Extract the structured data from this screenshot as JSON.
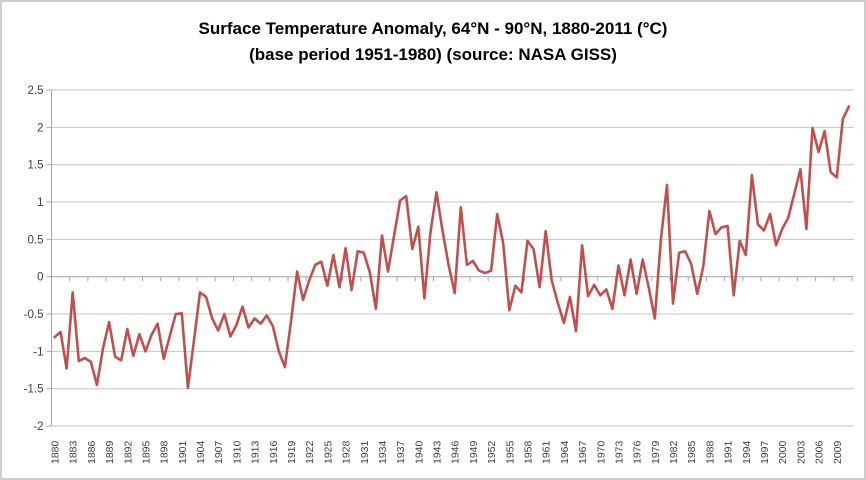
{
  "title": {
    "line1": "Surface Temperature Anomaly, 64°N - 90°N, 1880-2011 (°C)",
    "line2": "(base period 1951-1980) (source: NASA GISS)"
  },
  "colors": {
    "line": "#C0504D",
    "gridline": "#C6C6C6",
    "axis": "#A6A6A6",
    "label": "#3F3F3F",
    "title": "#000000",
    "border": "#CDCDCD",
    "background": "#FFFFFF"
  },
  "chart_data": {
    "type": "line",
    "title": "Surface Temperature Anomaly, 64°N - 90°N, 1880-2011 (°C)",
    "subtitle": "(base period 1951-1980) (source: NASA GISS)",
    "xlabel": "",
    "ylabel": "",
    "legend": "none",
    "grid": "horizontal",
    "first_year": 1880,
    "last_year": 2011,
    "ylim": [
      -2,
      2.5
    ],
    "y_ticks": [
      "2.5",
      "2",
      "1.5",
      "1",
      "0.5",
      "0",
      "-0.5",
      "-1",
      "-1.5",
      "-2"
    ],
    "y_tick_values": [
      2.5,
      2,
      1.5,
      1,
      0.5,
      0,
      -0.5,
      -1,
      -1.5,
      -2
    ],
    "x_tick_interval": 3,
    "x_tick_labels": [
      "1880",
      "1883",
      "1886",
      "1889",
      "1892",
      "1895",
      "1898",
      "1901",
      "1904",
      "1907",
      "1910",
      "1913",
      "1916",
      "1919",
      "1922",
      "1925",
      "1928",
      "1931",
      "1934",
      "1937",
      "1940",
      "1943",
      "1946",
      "1949",
      "1952",
      "1955",
      "1958",
      "1961",
      "1964",
      "1967",
      "1970",
      "1973",
      "1976",
      "1979",
      "1982",
      "1985",
      "1988",
      "1991",
      "1994",
      "1997",
      "2000",
      "2003",
      "2006",
      "2009"
    ],
    "values": [
      -0.81,
      -0.74,
      -1.23,
      -0.21,
      -1.13,
      -1.09,
      -1.14,
      -1.45,
      -0.96,
      -0.61,
      -1.07,
      -1.12,
      -0.7,
      -1.06,
      -0.77,
      -1.0,
      -0.78,
      -0.63,
      -1.1,
      -0.8,
      -0.5,
      -0.49,
      -1.49,
      -0.85,
      -0.21,
      -0.27,
      -0.56,
      -0.72,
      -0.5,
      -0.8,
      -0.65,
      -0.4,
      -0.68,
      -0.56,
      -0.63,
      -0.52,
      -0.66,
      -1.0,
      -1.21,
      -0.6,
      0.07,
      -0.31,
      -0.05,
      0.16,
      0.2,
      -0.12,
      0.29,
      -0.14,
      0.38,
      -0.18,
      0.34,
      0.32,
      0.06,
      -0.43,
      0.55,
      0.07,
      0.55,
      1.02,
      1.08,
      0.37,
      0.67,
      -0.29,
      0.6,
      1.13,
      0.61,
      0.15,
      -0.22,
      0.93,
      0.16,
      0.21,
      0.08,
      0.05,
      0.08,
      0.84,
      0.45,
      -0.45,
      -0.12,
      -0.21,
      0.48,
      0.37,
      -0.14,
      0.61,
      -0.05,
      -0.35,
      -0.62,
      -0.27,
      -0.73,
      0.42,
      -0.26,
      -0.11,
      -0.25,
      -0.17,
      -0.43,
      0.15,
      -0.25,
      0.23,
      -0.23,
      0.23,
      -0.15,
      -0.56,
      0.5,
      1.23,
      -0.36,
      0.32,
      0.34,
      0.17,
      -0.23,
      0.14,
      0.88,
      0.57,
      0.66,
      0.68,
      -0.25,
      0.48,
      0.29,
      1.36,
      0.7,
      0.62,
      0.84,
      0.42,
      0.64,
      0.79,
      1.11,
      1.44,
      0.64,
      1.99,
      1.67,
      1.95,
      1.4,
      1.33,
      2.11,
      2.28
    ]
  }
}
